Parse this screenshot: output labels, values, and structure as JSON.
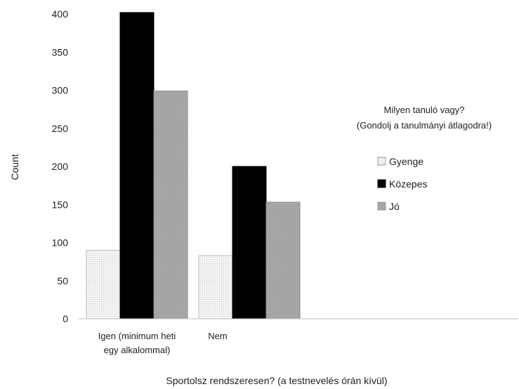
{
  "chart_data": {
    "type": "bar",
    "title": "",
    "xlabel": "Sportolsz rendszeresen? (a testnevelés órán kívül)",
    "ylabel": "Count",
    "ylim": [
      0,
      400
    ],
    "yticks": [
      0,
      50,
      100,
      150,
      200,
      250,
      300,
      350,
      400
    ],
    "grid": false,
    "categories": [
      [
        "Igen (minimum heti",
        "egy alkalommal)"
      ],
      [
        "Nem"
      ]
    ],
    "series": [
      {
        "name": "Gyenge",
        "values": [
          90,
          83
        ],
        "color": "#f0f0f0"
      },
      {
        "name": "Közepes",
        "values": [
          402,
          200
        ],
        "color": "#000000"
      },
      {
        "name": "Jó",
        "values": [
          299,
          153
        ],
        "color": "#a6a6a6"
      }
    ],
    "legend": {
      "title": [
        "Milyen tanuló vagy?",
        "(Gondolj a tanulmányi átlagodra!)"
      ],
      "placement": "right"
    }
  }
}
